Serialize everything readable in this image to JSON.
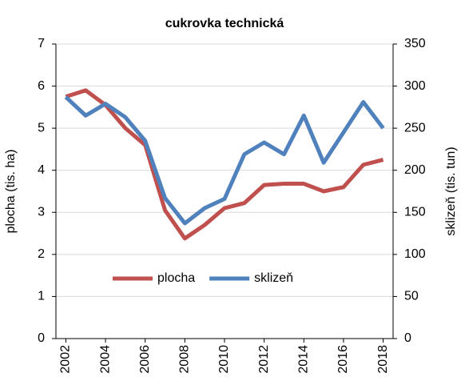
{
  "chart_data": {
    "type": "line",
    "title": "cukrovka technická",
    "x": [
      2002,
      2003,
      2004,
      2005,
      2006,
      2007,
      2008,
      2009,
      2010,
      2011,
      2012,
      2013,
      2014,
      2015,
      2016,
      2017,
      2018
    ],
    "xlim": [
      2001.5,
      2018.5
    ],
    "xticks": [
      2002,
      2004,
      2006,
      2008,
      2010,
      2012,
      2014,
      2016,
      2018
    ],
    "ylabel": "plocha (tis. ha)",
    "y2label": "sklizeň (tis. tun)",
    "ylim": [
      0,
      7
    ],
    "yticks": [
      0,
      1,
      2,
      3,
      4,
      5,
      6,
      7
    ],
    "y2lim": [
      0,
      350
    ],
    "y2ticks": [
      0,
      50,
      100,
      150,
      200,
      250,
      300,
      350
    ],
    "grid": true,
    "legend": "center",
    "series": [
      {
        "name": "plocha",
        "color": "#c0504d",
        "values": [
          5.75,
          5.9,
          5.55,
          5.0,
          4.6,
          3.05,
          2.38,
          2.7,
          3.1,
          3.22,
          3.65,
          3.68,
          3.68,
          3.5,
          3.6,
          4.13,
          4.25
        ]
      },
      {
        "name": "sklizeň",
        "color": "#4f81bd",
        "axis": "y2",
        "values": [
          287,
          265,
          279,
          263,
          235,
          167,
          137,
          155,
          166,
          219,
          233,
          219,
          265,
          209,
          245,
          281,
          250
        ]
      }
    ]
  }
}
